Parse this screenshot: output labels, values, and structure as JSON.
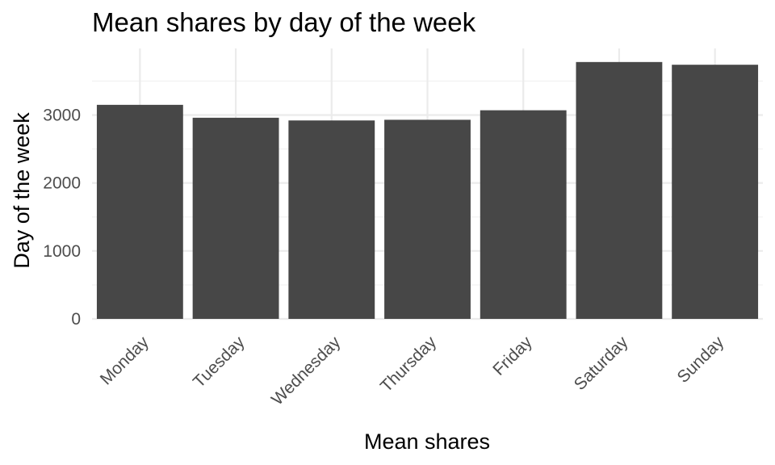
{
  "chart_data": {
    "type": "bar",
    "title": "Mean shares by day of the week",
    "xlabel": "Mean shares",
    "ylabel": "Day of the week",
    "categories": [
      "Monday",
      "Tuesday",
      "Wednesday",
      "Thursday",
      "Friday",
      "Saturday",
      "Sunday"
    ],
    "values": [
      3150,
      2960,
      2920,
      2930,
      3070,
      3780,
      3740
    ],
    "ylim": [
      0,
      3980
    ],
    "yticks": [
      0,
      1000,
      2000,
      3000
    ],
    "grid": true,
    "bar_color": "#474747"
  }
}
